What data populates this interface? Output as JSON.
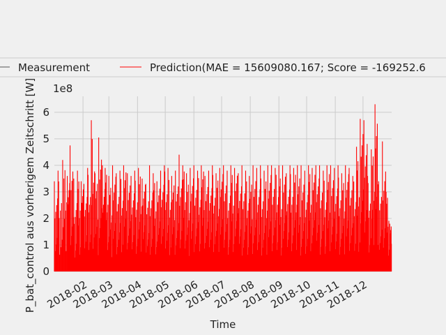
{
  "chart_data": {
    "type": "line",
    "xlabel": "Time",
    "ylabel": "P_bat_control aus vorherigem Zeitschritt [W]",
    "y_offset_label": "1e8",
    "ylim": [
      0,
      6.6
    ],
    "yticks": [
      0,
      1,
      2,
      3,
      4,
      5,
      6
    ],
    "x_range": [
      "2018-01-01",
      "2019-01-01"
    ],
    "xticks": [
      "2018-02",
      "2018-03",
      "2018-04",
      "2018-05",
      "2018-06",
      "2018-07",
      "2018-08",
      "2018-09",
      "2018-10",
      "2018-11",
      "2018-12"
    ],
    "grid": true,
    "legend": {
      "placement": "top, outside plot, 2 columns"
    },
    "series": [
      {
        "name": "Measurement",
        "color": "#555555",
        "values": []
      },
      {
        "name": "Prediction(MAE = 15609080.167; Score = -169252.6",
        "color": "#ff0000",
        "x": [
          "2018-01-01",
          "2018-01-05",
          "2018-01-10",
          "2018-01-15",
          "2018-01-18",
          "2018-01-22",
          "2018-01-26",
          "2018-01-30",
          "2018-02-02",
          "2018-02-06",
          "2018-02-10",
          "2018-02-14",
          "2018-02-18",
          "2018-02-22",
          "2018-02-25",
          "2018-03-01",
          "2018-03-05",
          "2018-03-09",
          "2018-03-13",
          "2018-03-17",
          "2018-03-21",
          "2018-03-25",
          "2018-03-29",
          "2018-04-02",
          "2018-04-06",
          "2018-04-10",
          "2018-04-14",
          "2018-04-18",
          "2018-04-22",
          "2018-04-26",
          "2018-04-30",
          "2018-05-04",
          "2018-05-08",
          "2018-05-12",
          "2018-05-16",
          "2018-05-20",
          "2018-05-24",
          "2018-05-28",
          "2018-06-01",
          "2018-06-05",
          "2018-06-09",
          "2018-06-13",
          "2018-06-17",
          "2018-06-21",
          "2018-06-25",
          "2018-06-29",
          "2018-07-03",
          "2018-07-07",
          "2018-07-11",
          "2018-07-15",
          "2018-07-19",
          "2018-07-23",
          "2018-07-27",
          "2018-07-31",
          "2018-08-04",
          "2018-08-08",
          "2018-08-12",
          "2018-08-16",
          "2018-08-20",
          "2018-08-24",
          "2018-08-28",
          "2018-09-01",
          "2018-09-05",
          "2018-09-09",
          "2018-09-13",
          "2018-09-17",
          "2018-09-21",
          "2018-09-25",
          "2018-09-29",
          "2018-10-03",
          "2018-10-07",
          "2018-10-11",
          "2018-10-15",
          "2018-10-19",
          "2018-10-23",
          "2018-10-27",
          "2018-10-31",
          "2018-11-04",
          "2018-11-08",
          "2018-11-12",
          "2018-11-16",
          "2018-11-20",
          "2018-11-24",
          "2018-11-28",
          "2018-12-02",
          "2018-12-06",
          "2018-12-10",
          "2018-12-14",
          "2018-12-18",
          "2018-12-22",
          "2018-12-26",
          "2018-12-30"
        ],
        "y": [
          3.4,
          3.8,
          4.2,
          3.6,
          4.75,
          3.5,
          3.8,
          3.4,
          3.3,
          3.9,
          5.7,
          3.7,
          5.05,
          4.0,
          3.9,
          3.6,
          4.0,
          3.7,
          3.8,
          4.0,
          3.7,
          3.6,
          3.8,
          3.9,
          3.5,
          3.3,
          4.0,
          3.7,
          3.4,
          3.8,
          4.0,
          3.9,
          3.6,
          3.8,
          4.4,
          4.0,
          3.7,
          3.9,
          4.0,
          3.8,
          4.0,
          3.6,
          3.8,
          4.0,
          3.7,
          3.9,
          4.0,
          3.8,
          4.0,
          3.9,
          3.7,
          4.0,
          3.8,
          3.6,
          4.0,
          3.9,
          4.0,
          3.8,
          4.0,
          4.0,
          3.9,
          4.0,
          4.0,
          3.7,
          4.0,
          3.9,
          4.0,
          4.0,
          3.8,
          4.0,
          3.9,
          4.0,
          4.0,
          3.8,
          4.0,
          4.0,
          3.9,
          4.0,
          3.7,
          4.0,
          3.9,
          3.6,
          4.7,
          5.75,
          5.7,
          3.6,
          4.6,
          6.3,
          3.4,
          4.9,
          3.0,
          1.8
        ]
      }
    ]
  }
}
